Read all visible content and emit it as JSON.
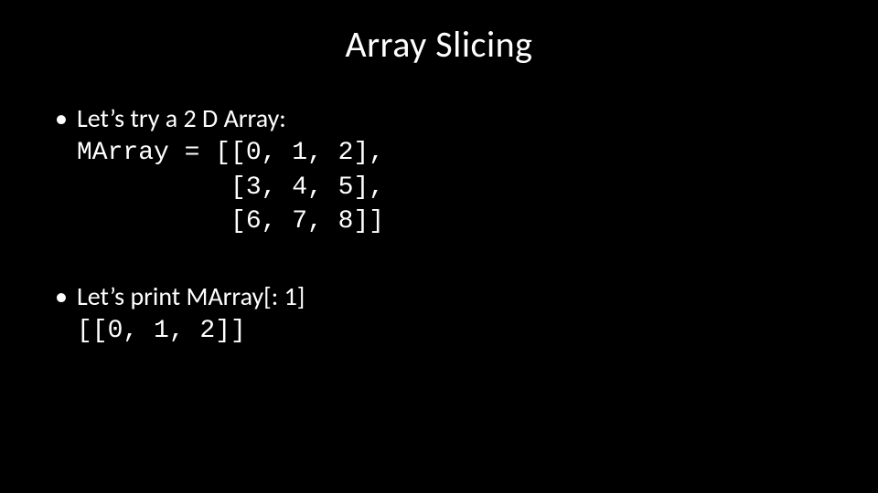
{
  "colors": {
    "background": "#000000",
    "text": "#ffffff"
  },
  "typography": {
    "title_font": "Calibri",
    "title_size_pt": 40,
    "body_font": "Calibri",
    "body_size_pt": 28,
    "mono_font": "Courier New",
    "mono_size_pt": 28
  },
  "slide": {
    "title": "Array Slicing",
    "bullets": [
      {
        "text": "Let’s try a 2 D Array:",
        "code_lines": [
          "MArray = [[0, 1, 2],",
          "          [3, 4, 5],",
          "          [6, 7, 8]]"
        ]
      },
      {
        "text": "Let’s print MArray[: 1]",
        "code_lines": [
          "[[0, 1, 2]]"
        ]
      }
    ]
  }
}
